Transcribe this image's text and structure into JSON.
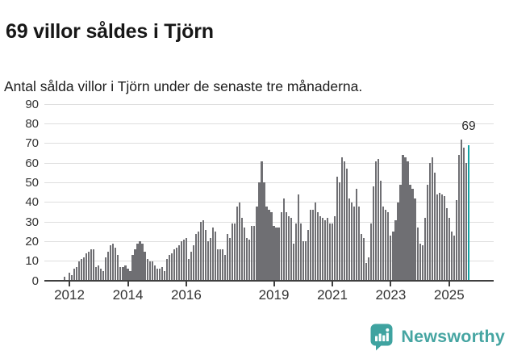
{
  "header": {
    "title": "69 villor såldes i Tjörn",
    "subtitle": "Antal sålda villor i Tjörn under de senaste tre månaderna."
  },
  "chart_data": {
    "type": "bar",
    "title": "69 villor såldes i Tjörn",
    "subtitle": "Antal sålda villor i Tjörn under de senaste tre månaderna.",
    "xlabel": "",
    "ylabel": "",
    "ylim": [
      0,
      90
    ],
    "yticks": [
      0,
      10,
      20,
      30,
      40,
      50,
      60,
      70,
      80,
      90
    ],
    "grid": "horizontal",
    "start_month": "2011-11",
    "frequency": "monthly",
    "values": [
      2,
      0,
      4,
      3,
      6,
      7,
      10,
      11,
      12,
      14,
      15,
      16,
      16,
      7,
      8,
      6,
      5,
      12,
      15,
      18,
      19,
      17,
      13,
      7,
      7,
      8,
      6,
      5,
      13,
      16,
      19,
      20,
      19,
      15,
      11,
      10,
      10,
      8,
      6,
      6,
      7,
      5,
      11,
      13,
      14,
      16,
      17,
      18,
      20,
      21,
      22,
      11,
      15,
      18,
      24,
      25,
      30,
      31,
      26,
      20,
      22,
      27,
      25,
      16,
      16,
      16,
      13,
      24,
      22,
      29,
      29,
      38,
      40,
      32,
      27,
      22,
      21,
      28,
      28,
      38,
      50,
      61,
      50,
      38,
      36,
      35,
      28,
      27,
      27,
      35,
      42,
      35,
      33,
      32,
      19,
      29,
      44,
      29,
      20,
      20,
      26,
      36,
      36,
      40,
      35,
      33,
      32,
      31,
      32,
      29,
      29,
      33,
      53,
      50,
      63,
      61,
      57,
      42,
      40,
      38,
      47,
      38,
      24,
      22,
      9,
      12,
      29,
      48,
      61,
      62,
      51,
      38,
      36,
      35,
      23,
      25,
      31,
      40,
      49,
      64,
      63,
      61,
      49,
      47,
      42,
      27,
      19,
      18,
      32,
      49,
      60,
      63,
      55,
      44,
      45,
      44,
      43,
      37,
      32,
      25,
      23,
      41,
      64,
      72,
      68,
      60,
      69
    ],
    "xticks": [
      {
        "label": "2012",
        "month_index": 2
      },
      {
        "label": "2014",
        "month_index": 26
      },
      {
        "label": "2016",
        "month_index": 50
      },
      {
        "label": "2019",
        "month_index": 86
      },
      {
        "label": "2021",
        "month_index": 110
      },
      {
        "label": "2023",
        "month_index": 134
      },
      {
        "label": "2025",
        "month_index": 158
      }
    ],
    "highlight": {
      "index": 166,
      "value": 69,
      "label": "69"
    },
    "colors": {
      "bar": "#6f6f73",
      "highlight": "#12a2a3",
      "grid": "#dedede",
      "axis": "#3f3f3f",
      "tick_text": "#333333"
    }
  },
  "footer": {
    "brand": "Newsworthy",
    "brand_color": "#46a5a2",
    "logo_icon": "bar-chart-speech-bubble-icon"
  }
}
